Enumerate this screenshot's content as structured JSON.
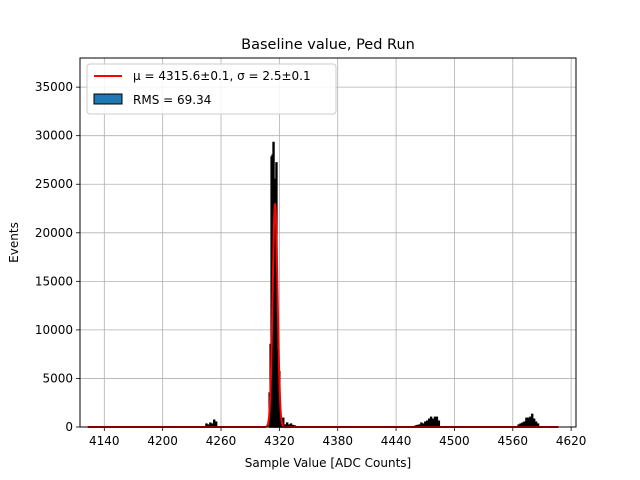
{
  "chart_data": {
    "type": "bar",
    "title": "Baseline value, Ped Run",
    "xlabel": "Sample Value [ADC Counts]",
    "ylabel": "Events",
    "xlim": [
      4115,
      4625
    ],
    "ylim": [
      0,
      38000
    ],
    "xticks": [
      4140,
      4200,
      4260,
      4320,
      4380,
      4440,
      4500,
      4560,
      4620
    ],
    "yticks": [
      0,
      5000,
      10000,
      15000,
      20000,
      25000,
      30000,
      35000
    ],
    "grid": true,
    "legend_position": "top-left",
    "colors": {
      "histogram_edge": "#000000",
      "histogram_fill": "#1f77b4",
      "fit": "#ff0000",
      "grid": "#b0b0b0"
    },
    "legend": {
      "fit_label": "μ = 4315.6±0.1, σ = 2.5±0.1",
      "hist_label": "RMS = 69.34"
    },
    "histogram": {
      "x": [
        4245,
        4247,
        4249,
        4251,
        4253,
        4255,
        4310,
        4311,
        4312,
        4313,
        4314,
        4315,
        4316,
        4317,
        4318,
        4319,
        4320,
        4321,
        4322,
        4323,
        4324,
        4326,
        4328,
        4330,
        4332,
        4334,
        4336,
        4460,
        4462,
        4464,
        4466,
        4468,
        4470,
        4472,
        4474,
        4476,
        4478,
        4480,
        4482,
        4484,
        4566,
        4568,
        4570,
        4572,
        4574,
        4576,
        4578,
        4580,
        4582,
        4584,
        4586
      ],
      "y": [
        300,
        200,
        400,
        300,
        700,
        500,
        3500,
        8500,
        27800,
        28000,
        29300,
        15500,
        25500,
        27200,
        8000,
        5800,
        5700,
        1000,
        400,
        300,
        900,
        200,
        400,
        200,
        300,
        150,
        100,
        100,
        150,
        200,
        400,
        300,
        500,
        600,
        800,
        1000,
        800,
        1000,
        1000,
        600,
        200,
        300,
        400,
        500,
        900,
        900,
        1000,
        1300,
        800,
        500,
        300
      ]
    },
    "fit": {
      "type": "gaussian",
      "mu": 4315.6,
      "sigma": 2.5,
      "amplitude": 23000,
      "x_range": [
        4123,
        4607
      ]
    }
  }
}
